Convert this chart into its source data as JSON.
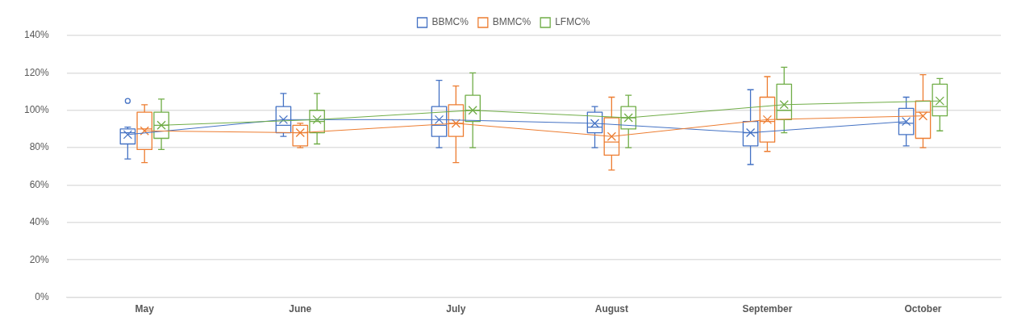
{
  "chart_data": {
    "type": "box",
    "categories": [
      "May",
      "June",
      "July",
      "August",
      "September",
      "October"
    ],
    "ylim": [
      0,
      140
    ],
    "yticks": [
      {
        "value": 0,
        "label": "0%"
      },
      {
        "value": 20,
        "label": "20%"
      },
      {
        "value": 40,
        "label": "40%"
      },
      {
        "value": 60,
        "label": "60%"
      },
      {
        "value": 80,
        "label": "80%"
      },
      {
        "value": 100,
        "label": "100%"
      },
      {
        "value": 120,
        "label": "120%"
      },
      {
        "value": 140,
        "label": "140%"
      }
    ],
    "grid": "y",
    "legend": "top",
    "series": [
      {
        "name": "BBMC%",
        "color": "#4472c4",
        "boxes": [
          {
            "low": 74,
            "q1": 82,
            "median": 88,
            "q3": 90,
            "high": 91,
            "mean": 87,
            "outliers": [
              105
            ]
          },
          {
            "low": 86,
            "q1": 88,
            "median": 92,
            "q3": 102,
            "high": 109,
            "mean": 95
          },
          {
            "low": 80,
            "q1": 86,
            "median": 92,
            "q3": 102,
            "high": 116,
            "mean": 95
          },
          {
            "low": 80,
            "q1": 88,
            "median": 91,
            "q3": 99,
            "high": 102,
            "mean": 93
          },
          {
            "low": 71,
            "q1": 81,
            "median": 88,
            "q3": 94,
            "high": 111,
            "mean": 88
          },
          {
            "low": 81,
            "q1": 87,
            "median": 93,
            "q3": 101,
            "high": 107,
            "mean": 94
          }
        ]
      },
      {
        "name": "BMMC%",
        "color": "#ed7d31",
        "boxes": [
          {
            "low": 72,
            "q1": 79,
            "median": 90,
            "q3": 99,
            "high": 103,
            "mean": 89
          },
          {
            "low": 80,
            "q1": 81,
            "median": 88,
            "q3": 92,
            "high": 93,
            "mean": 88
          },
          {
            "low": 72,
            "q1": 86,
            "median": 93,
            "q3": 103,
            "high": 113,
            "mean": 93
          },
          {
            "low": 68,
            "q1": 76,
            "median": 83,
            "q3": 96,
            "high": 107,
            "mean": 86
          },
          {
            "low": 78,
            "q1": 83,
            "median": 94,
            "q3": 107,
            "high": 118,
            "mean": 95
          },
          {
            "low": 80,
            "q1": 85,
            "median": 99,
            "q3": 105,
            "high": 119,
            "mean": 97
          }
        ]
      },
      {
        "name": "LFMC%",
        "color": "#70ad47",
        "boxes": [
          {
            "low": 79,
            "q1": 85,
            "median": 92,
            "q3": 99,
            "high": 106,
            "mean": 92
          },
          {
            "low": 82,
            "q1": 88,
            "median": 94,
            "q3": 100,
            "high": 109,
            "mean": 95
          },
          {
            "low": 80,
            "q1": 94,
            "median": 100,
            "q3": 108,
            "high": 120,
            "mean": 100
          },
          {
            "low": 80,
            "q1": 90,
            "median": 96,
            "q3": 102,
            "high": 108,
            "mean": 96
          },
          {
            "low": 88,
            "q1": 95,
            "median": 100,
            "q3": 114,
            "high": 123,
            "mean": 103
          },
          {
            "low": 89,
            "q1": 97,
            "median": 102,
            "q3": 114,
            "high": 117,
            "mean": 105
          }
        ]
      },
      {
        "type": "line",
        "color": "#4472c4",
        "values": [
          87,
          95,
          95,
          93,
          88,
          94
        ]
      },
      {
        "type": "line",
        "color": "#ed7d31",
        "values": [
          89,
          88,
          93,
          86,
          95,
          97
        ]
      },
      {
        "type": "line",
        "color": "#70ad47",
        "values": [
          92,
          95,
          100,
          96,
          103,
          105
        ]
      }
    ]
  }
}
